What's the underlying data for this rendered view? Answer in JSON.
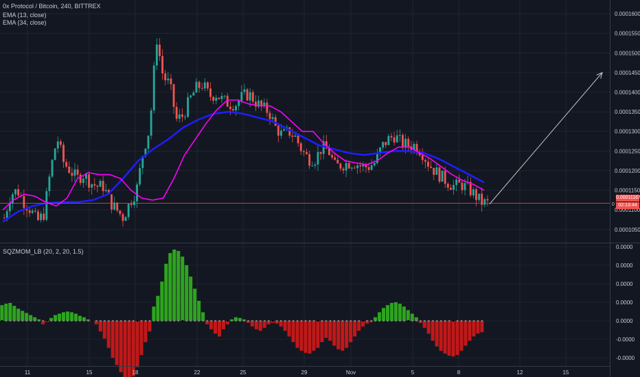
{
  "header": {
    "symbol_line": "0x Protocol / Bitcoin, 240, BITTREX",
    "ema13_label": "EMA (13, close)",
    "ema34_label": "EMA (34, close)",
    "indicator_label": "SQZMOM_LB (20, 2, 20, 1.5)"
  },
  "price_axis": {
    "ticks": [
      "0.00016000",
      "0.00015500",
      "0.00015000",
      "0.00014500",
      "0.00014000",
      "0.00013500",
      "0.00013000",
      "0.00012500",
      "0.00012000",
      "0.00011500",
      "0.00011000",
      "0.00010500"
    ],
    "current_price": "0.00011167",
    "countdown": "02:13:44",
    "hidden_prefix": "0"
  },
  "indicator_axis": {
    "ticks": [
      "0.0000",
      "0.0000",
      "0.0000",
      "0.0000",
      "0.0000",
      "-0.0000",
      "-0.0000"
    ]
  },
  "time_axis": {
    "ticks": [
      "11",
      "15",
      "18",
      "22",
      "25",
      "29",
      "Nov",
      "5",
      "8",
      "12",
      "15"
    ]
  },
  "colors": {
    "background": "#131722",
    "grid": "#2a2e39",
    "up": "#26a69a",
    "down": "#ef5350",
    "ema13": "#ff00ff",
    "ema34": "#1e1eff",
    "mom_up": "#2ea41f",
    "mom_down": "#c21818",
    "current_price_line": "#ef5350",
    "annotation": "#c8c8c8"
  },
  "chart_data": [
    {
      "type": "candlestick",
      "title": "0x Protocol / Bitcoin, 240, BITTREX",
      "x": [
        "11",
        "15",
        "18",
        "22",
        "25",
        "29",
        "Nov",
        "5",
        "8"
      ],
      "ylim": [
        0.000102,
        0.0001635
      ],
      "close_path": [
        0.000108,
        0.000114,
        0.000115,
        0.000112,
        0.00011,
        0.000107,
        0.000109,
        0.00012,
        0.0001285,
        0.000122,
        0.00012,
        0.000118,
        0.000119,
        0.000117,
        0.000116,
        0.000116,
        0.000112,
        0.00011,
        0.000108,
        0.000112,
        0.000115,
        0.000125,
        0.000131,
        0.000154,
        0.000144,
        0.000142,
        0.000133,
        0.000134,
        0.000138,
        0.000141,
        0.000142,
        0.000139,
        0.0001395,
        0.000138,
        0.000137,
        0.000137,
        0.000139,
        0.0001395,
        0.0001375,
        0.000136,
        0.000135,
        0.000131,
        0.000129,
        0.00013,
        0.0001285,
        0.000125,
        0.000123,
        0.000123,
        0.000126,
        0.000125,
        0.000121,
        0.0001215,
        0.000122,
        0.000122,
        0.000121,
        0.000121,
        0.000122,
        0.000126,
        0.000128,
        0.000129,
        0.000127,
        0.0001265,
        0.0001265,
        0.000125,
        0.000122,
        0.00012,
        0.0001185,
        0.000117,
        0.000116,
        0.0001165,
        0.0001155,
        0.000114,
        0.000112,
        0.0001117
      ],
      "ema13_path": [
        0.00011,
        0.0001125,
        0.000114,
        0.0001135,
        0.000112,
        0.000111,
        0.000113,
        0.000118,
        0.0001195,
        0.000119,
        0.000119,
        0.000118,
        0.000115,
        0.000113,
        0.0001125,
        0.000113,
        0.000118,
        0.000124,
        0.000128,
        0.000132,
        0.0001355,
        0.000138,
        0.000138,
        0.000137,
        0.0001365,
        0.0001365,
        0.000135,
        0.0001325,
        0.00013,
        0.00013,
        0.000127,
        0.0001245,
        0.0001225,
        0.000122,
        0.0001215,
        0.0001225,
        0.0001245,
        0.000126,
        0.000126,
        0.0001245,
        0.000123,
        0.000121,
        0.000119,
        0.0001175,
        0.0001165,
        0.000115
      ],
      "ema34_path": [
        0.000107,
        0.0001095,
        0.000111,
        0.0001118,
        0.000112,
        0.000112,
        0.0001125,
        0.000114,
        0.000118,
        0.0001225,
        0.0001255,
        0.000128,
        0.000131,
        0.000133,
        0.0001345,
        0.000135,
        0.0001345,
        0.0001335,
        0.0001325,
        0.0001305,
        0.0001285,
        0.0001265,
        0.0001255,
        0.0001245,
        0.000124,
        0.0001245,
        0.000125,
        0.000125,
        0.0001245,
        0.000123,
        0.000121,
        0.000119,
        0.000117
      ],
      "current_price": 0.00011167,
      "projection": {
        "from": 0.0001115,
        "to": 0.000145
      }
    },
    {
      "type": "bar",
      "title": "SQZMOM_LB (20, 2, 20, 1.5)",
      "ylim": [
        -1.0,
        1.0
      ],
      "momentum": [
        0.22,
        0.24,
        0.25,
        0.21,
        0.17,
        0.14,
        0.11,
        0.08,
        0.05,
        0.02,
        -0.05,
        -0.02,
        0.04,
        0.08,
        0.1,
        0.12,
        0.13,
        0.12,
        0.1,
        0.07,
        0.05,
        0.02,
        -0.01,
        -0.05,
        -0.15,
        -0.25,
        -0.38,
        -0.52,
        -0.62,
        -0.72,
        -0.82,
        -0.85,
        -0.78,
        -0.65,
        -0.48,
        -0.3,
        -0.15,
        0.2,
        0.35,
        0.55,
        0.8,
        0.95,
        1.0,
        0.98,
        0.9,
        0.78,
        0.62,
        0.45,
        0.28,
        0.12,
        -0.05,
        -0.12,
        -0.18,
        -0.22,
        -0.12,
        -0.05,
        0.02,
        0.05,
        0.04,
        0.02,
        -0.03,
        -0.08,
        -0.12,
        -0.14,
        -0.1,
        -0.05,
        -0.03,
        -0.04,
        -0.08,
        -0.14,
        -0.22,
        -0.3,
        -0.38,
        -0.42,
        -0.45,
        -0.46,
        -0.42,
        -0.38,
        -0.3,
        -0.24,
        -0.28,
        -0.35,
        -0.4,
        -0.42,
        -0.38,
        -0.3,
        -0.22,
        -0.14,
        -0.08,
        -0.04,
        -0.02,
        0.05,
        0.12,
        0.18,
        0.22,
        0.25,
        0.26,
        0.24,
        0.2,
        0.15,
        0.1,
        0.05,
        -0.03,
        -0.1,
        -0.18,
        -0.28,
        -0.36,
        -0.42,
        -0.46,
        -0.49,
        -0.5,
        -0.48,
        -0.42,
        -0.35,
        -0.28,
        -0.22,
        -0.18,
        -0.16
      ]
    }
  ]
}
